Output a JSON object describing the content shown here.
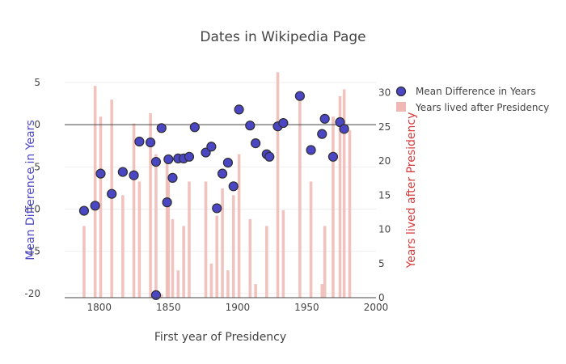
{
  "chart_data": {
    "type": "scatter",
    "title": "Dates in Wikipedia Page",
    "xlabel": "First year of Presidency",
    "ylabel": "Mean Difference in Years",
    "y2label": "Years lived after Presidency",
    "xlim": [
      1775,
      2000
    ],
    "ylim": [
      -20.5,
      5
    ],
    "y2lim": [
      0,
      31.5
    ],
    "x_ticks": [
      1800,
      1850,
      1900,
      1950,
      2000
    ],
    "y_ticks": [
      5,
      0,
      -5,
      -10,
      -15,
      -20
    ],
    "y2_ticks": [
      0,
      5,
      10,
      15,
      20,
      25,
      30
    ],
    "y2_tick_labels": [
      "0",
      "5",
      "10",
      "15",
      "20",
      "25",
      "30"
    ],
    "grid": true,
    "legend_position": "top-right",
    "colors": {
      "points_fill": "#4a46c4",
      "points_edge": "#2e2e2e",
      "bars": "#efb8b4",
      "y_title": "#4a46c4",
      "y2_title": "#d83a3a",
      "zero_line": "#444444",
      "grid": "#eeeeee"
    },
    "series": [
      {
        "name": "Mean Difference in Years",
        "type": "scatter",
        "x": [
          1789,
          1797,
          1801,
          1809,
          1817,
          1825,
          1829,
          1837,
          1841,
          1841,
          1845,
          1849,
          1850,
          1853,
          1857,
          1861,
          1865,
          1869,
          1877,
          1881,
          1885,
          1889,
          1893,
          1897,
          1901,
          1909,
          1913,
          1921,
          1923,
          1929,
          1933,
          1945,
          1953,
          1961,
          1963,
          1969,
          1974,
          1977
        ],
        "y": [
          -10.2,
          -9.6,
          -5.8,
          -8.2,
          -5.6,
          -6.0,
          -2.0,
          -2.1,
          -20.2,
          -4.4,
          -0.4,
          -9.2,
          -4.1,
          -6.3,
          -4.0,
          -4.0,
          -3.8,
          -0.3,
          -3.3,
          -2.6,
          -9.9,
          -5.8,
          -4.5,
          -7.3,
          1.8,
          -0.1,
          -2.2,
          -3.5,
          -3.8,
          -0.2,
          0.2,
          3.4,
          -3.0,
          -1.1,
          0.7,
          -3.8,
          0.3,
          -0.5
        ]
      },
      {
        "name": "Years lived after Presidency",
        "type": "bar",
        "axis": "right",
        "x": [
          1789,
          1797,
          1801,
          1809,
          1817,
          1825,
          1829,
          1837,
          1841,
          1845,
          1849,
          1850,
          1853,
          1857,
          1861,
          1865,
          1869,
          1877,
          1881,
          1885,
          1889,
          1893,
          1897,
          1901,
          1909,
          1913,
          1921,
          1923,
          1929,
          1933,
          1945,
          1953,
          1961,
          1963,
          1969,
          1974,
          1977,
          1981
        ],
        "y": [
          10.5,
          31,
          26.5,
          29,
          15,
          25.5,
          17,
          27,
          21,
          0.5,
          20,
          17,
          11.5,
          4,
          10.5,
          17,
          0,
          17,
          5,
          12,
          16,
          4,
          15,
          21,
          11.5,
          2,
          10.5,
          0,
          33,
          12.8,
          29,
          17,
          2,
          10.5,
          26.5,
          29.5,
          30.5,
          24.5
        ]
      }
    ]
  }
}
